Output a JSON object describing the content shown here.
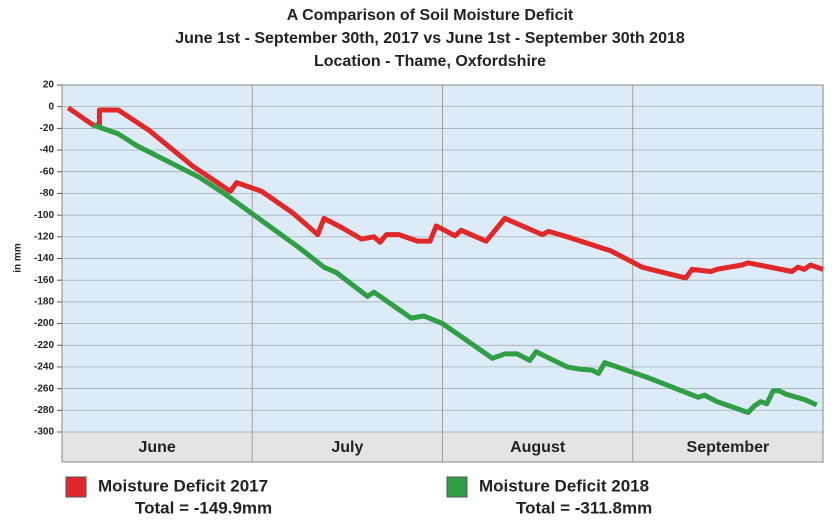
{
  "chart_data": {
    "type": "line",
    "title": "A Comparison of Soil Moisture Deficit",
    "subtitle": [
      "June 1st - September 30th, 2017 vs June 1st - September 30th 2018",
      "Location - Thame, Oxfordshire"
    ],
    "y_label": "in mm",
    "categories": [
      "June",
      "July",
      "August",
      "September"
    ],
    "xlim": [
      0,
      122
    ],
    "ylim": [
      -300,
      20
    ],
    "yticks": [
      20,
      0,
      -20,
      -40,
      -60,
      -80,
      -100,
      -120,
      -140,
      -160,
      -180,
      -200,
      -220,
      -240,
      -260,
      -280,
      -300
    ],
    "grid": true,
    "series": [
      {
        "name": "Moisture Deficit 2017",
        "total": "Total = -149.9mm",
        "color": "#e0282a",
        "x": [
          1,
          5,
          6,
          6,
          9,
          14,
          21,
          27,
          28,
          32,
          37,
          41,
          42,
          45,
          48,
          50,
          51,
          52,
          54,
          57,
          59,
          60,
          63,
          64,
          68,
          71,
          77,
          78,
          81,
          88,
          93,
          100,
          101,
          104,
          105,
          109,
          110,
          117,
          118,
          119,
          120,
          122
        ],
        "values": [
          -1,
          -17,
          -17,
          -3,
          -3,
          -22,
          -55,
          -78,
          -70,
          -78,
          -98,
          -118,
          -103,
          -112,
          -122,
          -120,
          -125,
          -118,
          -118,
          -124,
          -124,
          -110,
          -119,
          -114,
          -124,
          -103,
          -118,
          -115,
          -120,
          -133,
          -148,
          -158,
          -150,
          -152,
          -150,
          -146,
          -144,
          -152,
          -148,
          -150,
          -146,
          -150
        ]
      },
      {
        "name": "Moisture Deficit 2018",
        "total": "Total = -311.8mm",
        "color": "#2f9e44",
        "x": [
          5,
          9,
          12,
          22,
          26,
          32,
          38,
          42,
          44,
          49,
          50,
          56,
          58,
          61,
          64,
          69,
          71,
          73,
          75,
          76,
          81,
          83,
          85,
          86,
          87,
          89,
          94,
          102,
          103,
          105,
          110,
          111,
          112,
          113,
          114,
          115,
          116,
          119,
          121
        ],
        "values": [
          -17,
          -25,
          -36,
          -65,
          -80,
          -105,
          -130,
          -148,
          -153,
          -175,
          -171,
          -195,
          -193,
          -200,
          -212,
          -232,
          -228,
          -228,
          -234,
          -226,
          -240,
          -242,
          -243,
          -246,
          -236,
          -240,
          -250,
          -268,
          -266,
          -272,
          -282,
          -276,
          -272,
          -274,
          -262,
          -262,
          -265,
          -270,
          -275
        ]
      }
    ]
  }
}
